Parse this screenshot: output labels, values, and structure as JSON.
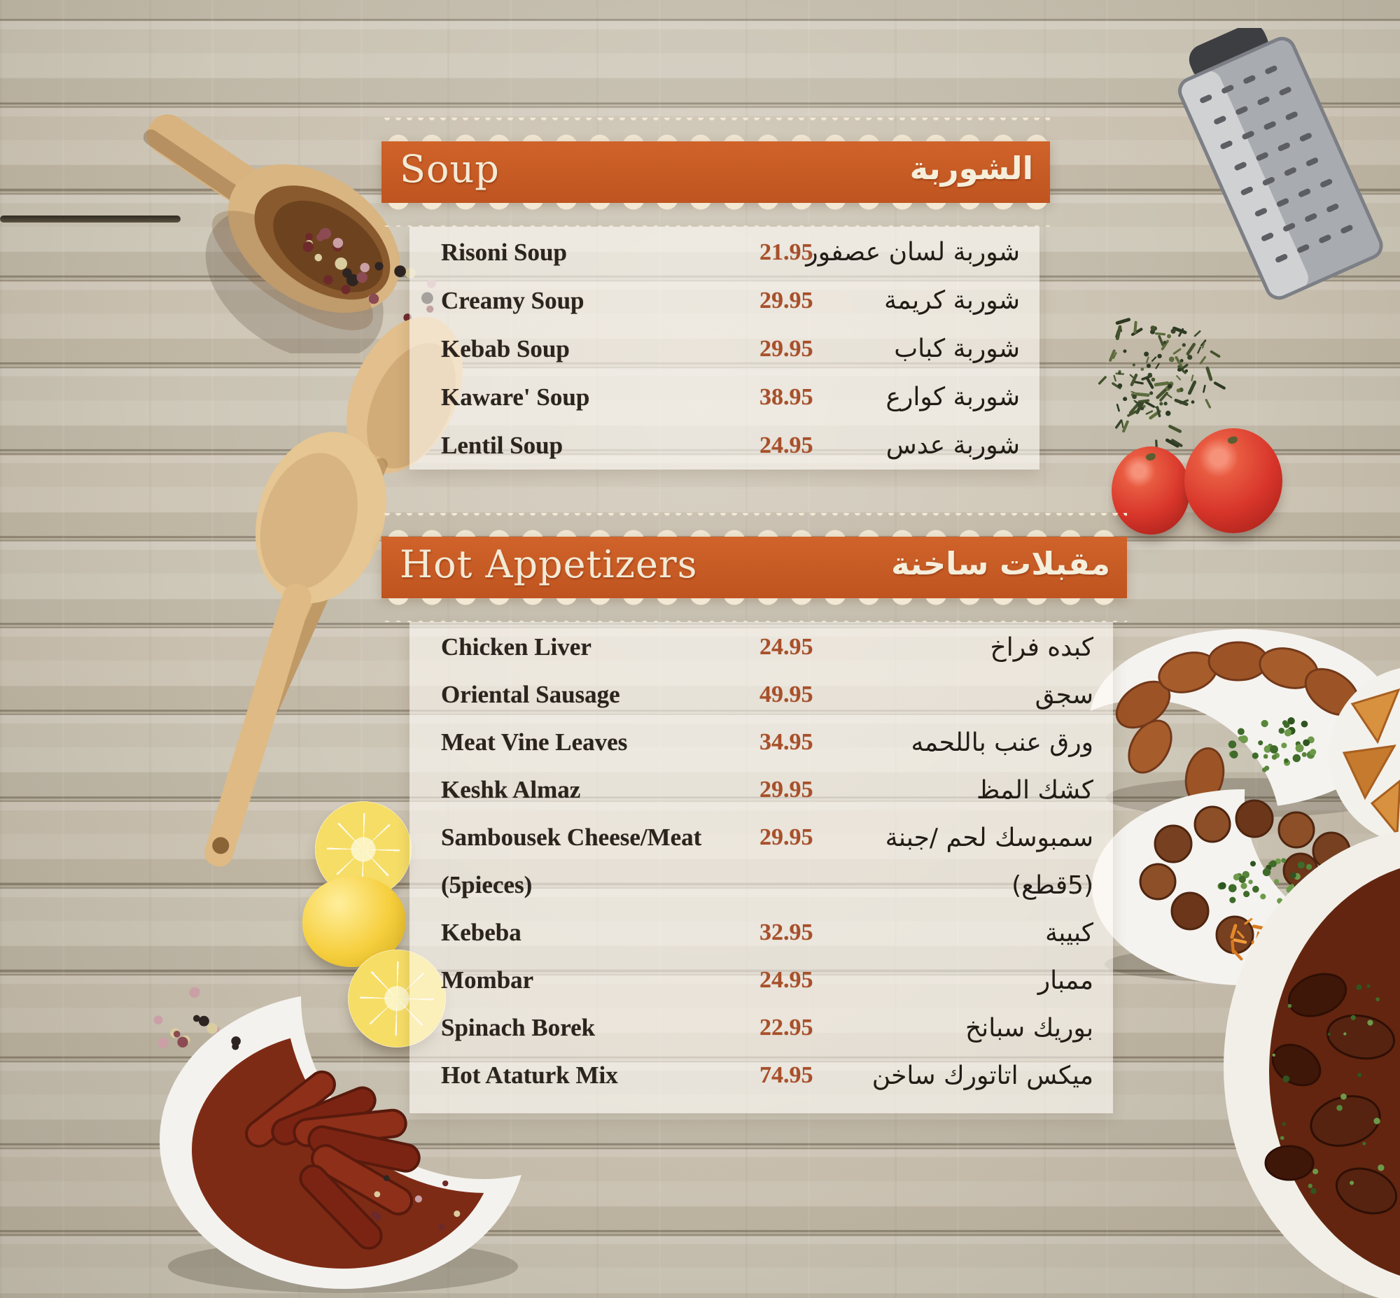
{
  "menu": {
    "sections": [
      {
        "title_en": "Soup",
        "title_ar": "الشوربة",
        "items": [
          {
            "name_en": "Risoni Soup",
            "price": "21.95",
            "name_ar": "شوربة لسان عصفور"
          },
          {
            "name_en": "Creamy Soup",
            "price": "29.95",
            "name_ar": "شوربة كريمة"
          },
          {
            "name_en": "Kebab Soup",
            "price": "29.95",
            "name_ar": "شوربة كباب"
          },
          {
            "name_en": "Kaware' Soup",
            "price": "38.95",
            "name_ar": "شوربة كوارع"
          },
          {
            "name_en": "Lentil Soup",
            "price": "24.95",
            "name_ar": "شوربة عدس"
          }
        ]
      },
      {
        "title_en": "Hot Appetizers",
        "title_ar": "مقبلات ساخنة",
        "items": [
          {
            "name_en": "Chicken Liver",
            "price": "24.95",
            "name_ar": "كبده فراخ"
          },
          {
            "name_en": "Oriental Sausage",
            "price": "49.95",
            "name_ar": "سجق"
          },
          {
            "name_en": "Meat Vine Leaves",
            "price": "34.95",
            "name_ar": "ورق عنب باللحمه"
          },
          {
            "name_en": "Keshk Almaz",
            "price": "29.95",
            "name_ar": "كشك المظ"
          },
          {
            "name_en": "Sambousek Cheese/Meat",
            "price": "29.95",
            "name_ar": "سمبوسك لحم /جبنة",
            "sub_en": "(5pieces)",
            "sub_ar": "(5قطع)"
          },
          {
            "name_en": "Kebeba",
            "price": "32.95",
            "name_ar": "كبيبة"
          },
          {
            "name_en": "Mombar",
            "price": "24.95",
            "name_ar": "ممبار"
          },
          {
            "name_en": "Spinach Borek",
            "price": "22.95",
            "name_ar": "بوريك سبانخ"
          },
          {
            "name_en": "Hot Ataturk Mix",
            "price": "74.95",
            "name_ar": "ميكس اتاتورك ساخن"
          }
        ]
      }
    ]
  },
  "colors": {
    "band_orange": "#c65a22",
    "lace_cream": "#f3ead7",
    "price_text": "#a8502a",
    "item_text": "#2b241e",
    "arabic_text": "#221c17",
    "wood_base": "#cbc2b2",
    "plate_white": "#f4f2ee"
  },
  "decor": {
    "props": [
      "wooden-scoop-with-peppercorns",
      "metal-grater",
      "thyme-sprinkle",
      "tomatoes",
      "wooden-spatulas",
      "lemon-slices",
      "sausage-bowl",
      "kibbeh-plate",
      "sambousek-plate",
      "meatball-plate",
      "meat-stew-bowl"
    ]
  }
}
